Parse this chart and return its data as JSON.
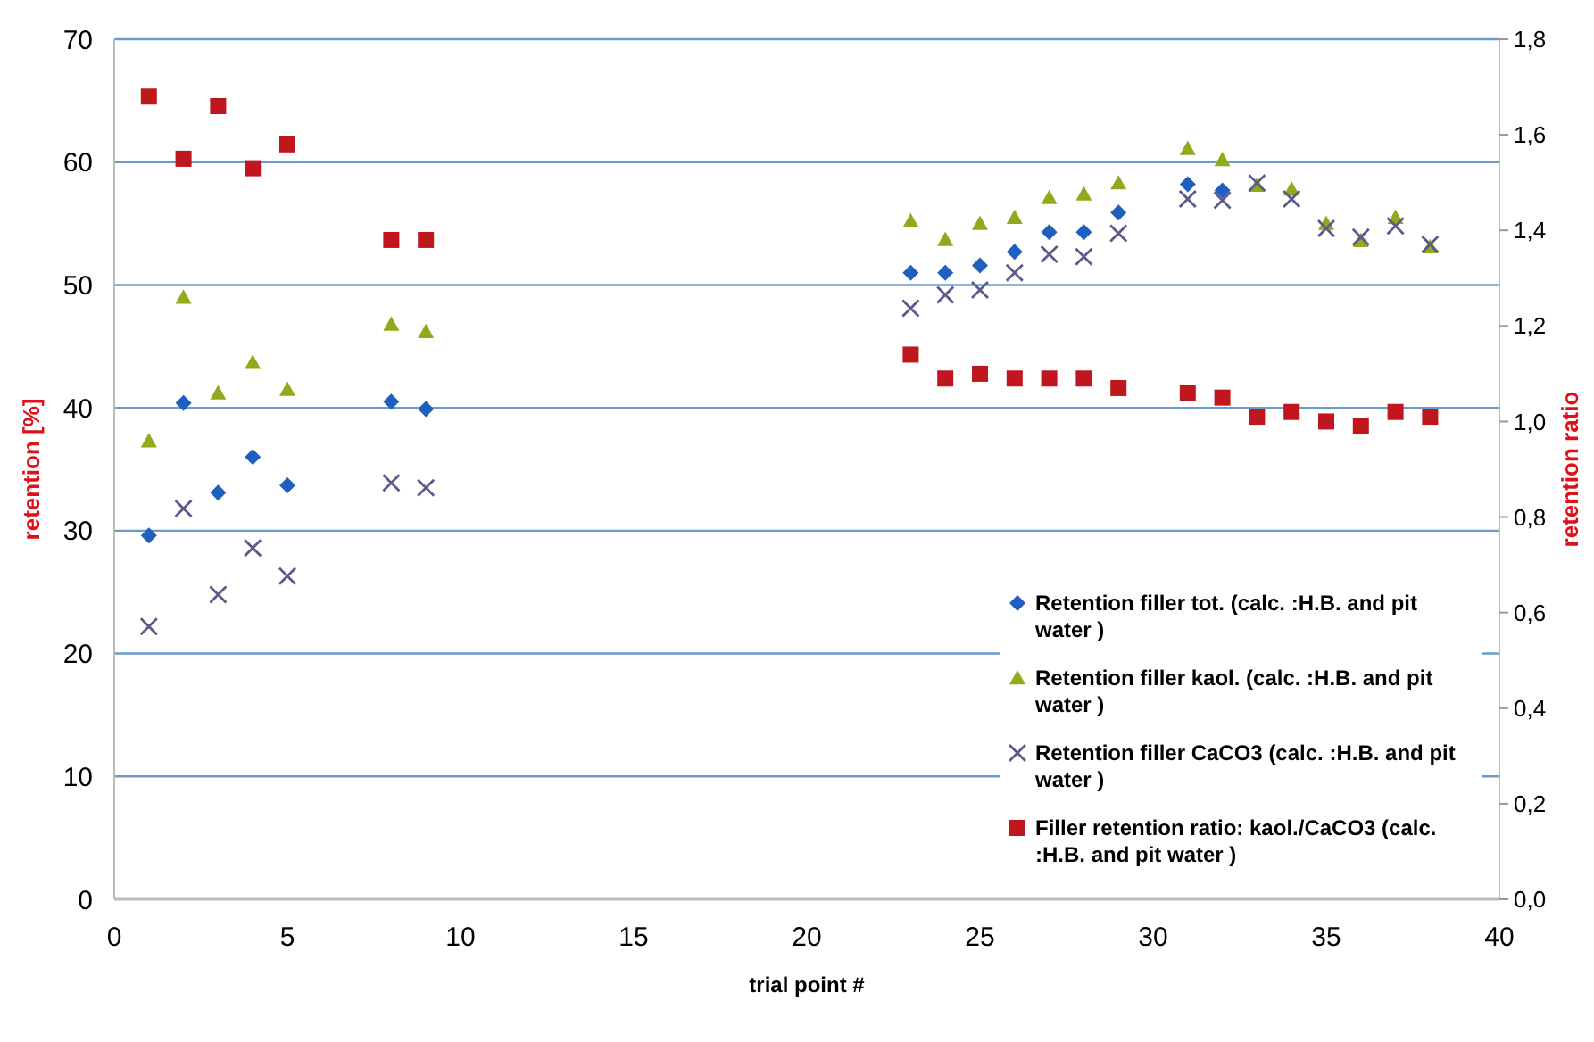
{
  "chart_data": {
    "type": "scatter",
    "xlabel": "trial point #",
    "ylabel": "retention [%]",
    "y2label": "retention ratio",
    "xlim": [
      0,
      40
    ],
    "xticks": [
      0,
      5,
      10,
      15,
      20,
      25,
      30,
      35,
      40
    ],
    "ylim": [
      0,
      70
    ],
    "yticks": [
      0,
      10,
      20,
      30,
      40,
      50,
      60,
      70
    ],
    "y2lim": [
      0,
      1.8
    ],
    "y2ticks": [
      {
        "value": 0,
        "label": "0,0"
      },
      {
        "value": 0.2,
        "label": "0,2"
      },
      {
        "value": 0.4,
        "label": "0,4"
      },
      {
        "value": 0.6,
        "label": "0,6"
      },
      {
        "value": 0.8,
        "label": "0,8"
      },
      {
        "value": 1,
        "label": "1,0"
      },
      {
        "value": 1.2,
        "label": "1,2"
      },
      {
        "value": 1.4,
        "label": "1,4"
      },
      {
        "value": 1.6,
        "label": "1,6"
      },
      {
        "value": 1.8,
        "label": "1,8"
      }
    ],
    "grid": "y",
    "legend": "bottom right",
    "x": [
      1,
      2,
      3,
      4,
      5,
      8,
      9,
      23,
      24,
      25,
      26,
      27,
      28,
      29,
      31,
      32,
      33,
      34,
      35,
      36,
      37,
      38
    ],
    "series": [
      {
        "name": "Retention filler tot. (calc. :H.B. and pit water )",
        "color": "#1f5fbf",
        "marker": "diamond",
        "values": [
          29.6,
          40.4,
          33.1,
          36.0,
          33.7,
          40.5,
          39.9,
          51.0,
          51.0,
          51.6,
          52.7,
          54.3,
          54.3,
          55.9,
          58.2,
          57.7,
          null,
          null,
          null,
          null,
          null,
          null
        ]
      },
      {
        "name": "Retention filler kaol. (calc. :H.B. and pit water )",
        "color": "#8faa1c",
        "marker": "triangle",
        "values": [
          37.3,
          49.0,
          41.2,
          43.7,
          41.5,
          46.8,
          46.2,
          55.2,
          53.7,
          55.0,
          55.5,
          57.1,
          57.4,
          58.3,
          61.1,
          60.2,
          58.1,
          57.8,
          55.0,
          53.6,
          55.5,
          53.1
        ]
      },
      {
        "name": "Retention filler CaCO3 (calc. :H.B. and pit water )",
        "color": "#5a5a8c",
        "marker": "cross",
        "values": [
          22.2,
          31.8,
          24.8,
          28.6,
          26.3,
          33.9,
          33.5,
          48.1,
          49.2,
          49.6,
          51.0,
          52.5,
          52.3,
          54.2,
          57.0,
          56.9,
          58.3,
          57.0,
          54.6,
          53.9,
          54.8,
          53.3
        ]
      },
      {
        "name": "Filler retention ratio: kaol./CaCO3 (calc. :H.B. and pit water )",
        "color": "#c0161e",
        "marker": "square",
        "axis": "y2",
        "values": [
          1.68,
          1.55,
          1.66,
          1.53,
          1.58,
          1.38,
          1.38,
          1.14,
          1.09,
          1.1,
          1.09,
          1.09,
          1.09,
          1.07,
          1.06,
          1.05,
          1.01,
          1.02,
          1.0,
          0.99,
          1.02,
          1.01
        ]
      }
    ]
  }
}
